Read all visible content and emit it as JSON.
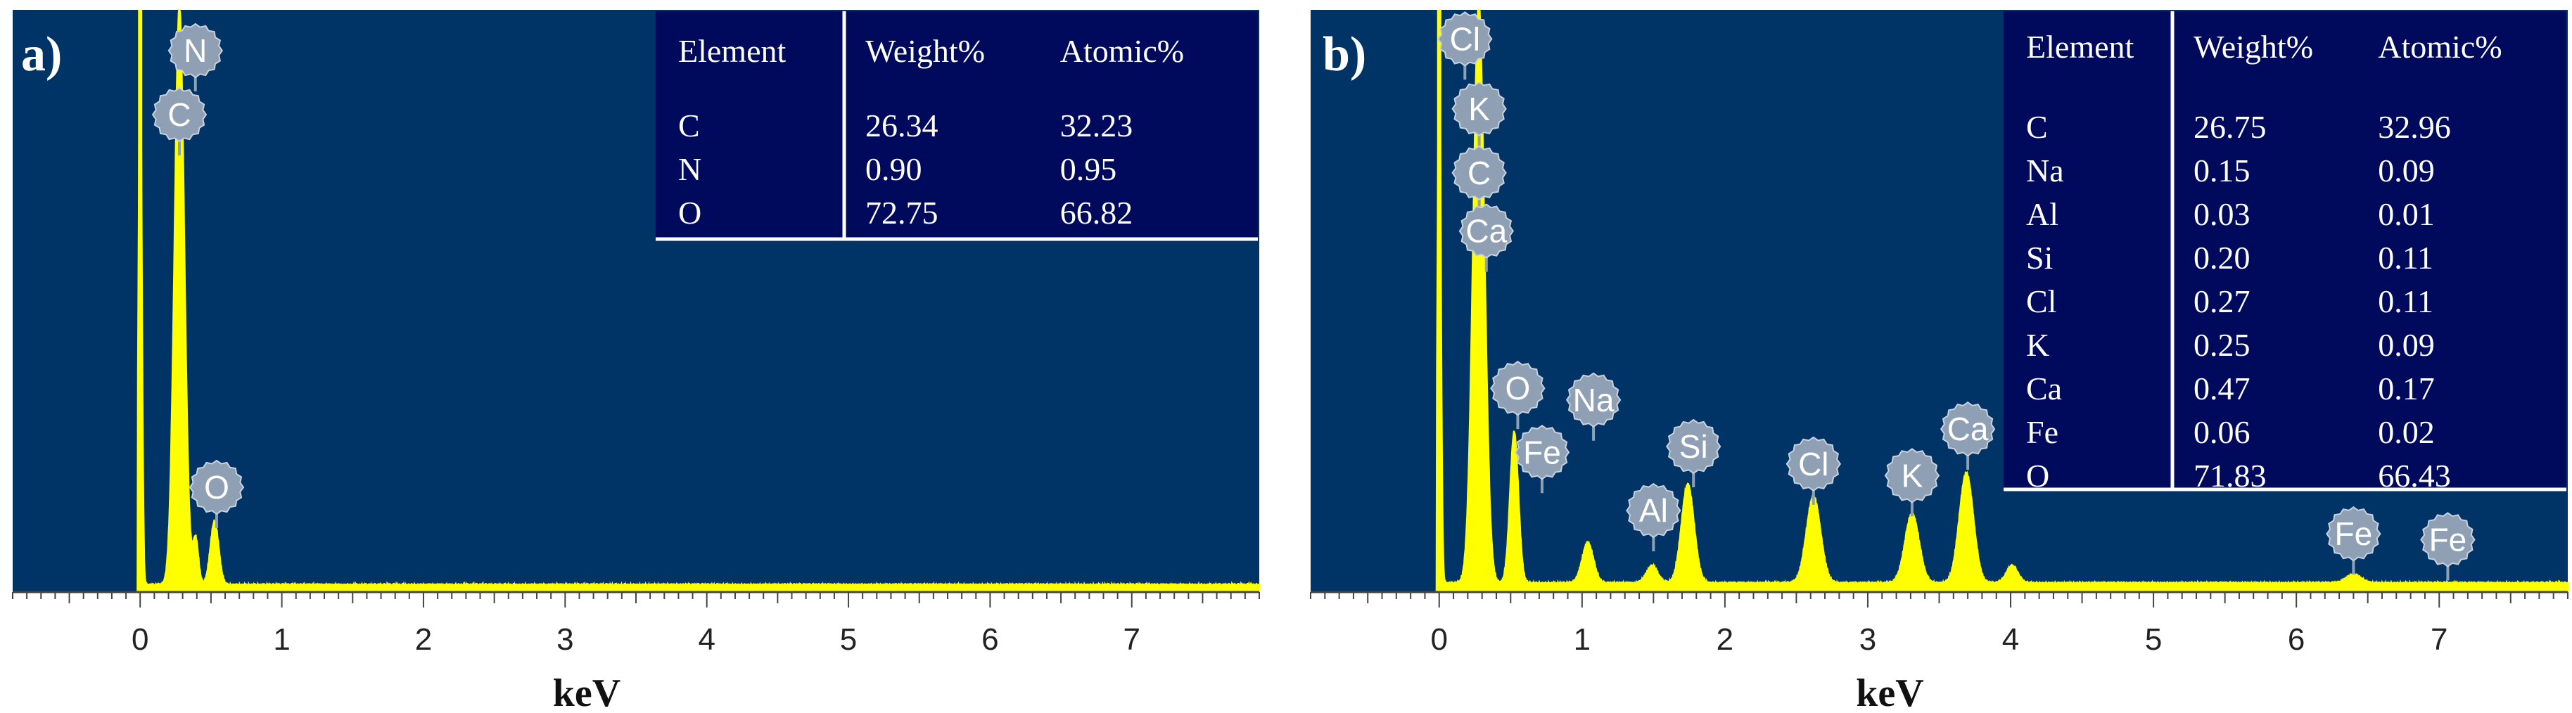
{
  "axis_title": "keV",
  "colors": {
    "background": "#003366",
    "spectrum": "#ffff00",
    "badge": "#8f9fb4",
    "table": "#000a5c",
    "axis": "#444444"
  },
  "chart_data": [
    {
      "type": "line",
      "panel_label": "a)",
      "xlabel": "keV",
      "xlim": [
        -0.9,
        7.9
      ],
      "ylim": [
        0,
        100
      ],
      "x_ticks": [
        0,
        1,
        2,
        3,
        4,
        5,
        6,
        7
      ],
      "grid": false,
      "series": [
        {
          "peaks": [
            {
              "x": 0.0,
              "y": 100,
              "width": 0.012
            },
            {
              "x": 0.277,
              "y": 100,
              "width": 0.035
            },
            {
              "x": 0.392,
              "y": 8,
              "width": 0.02
            },
            {
              "x": 0.525,
              "y": 11,
              "width": 0.03
            }
          ],
          "baseline": 1.2
        }
      ],
      "peak_labels": [
        {
          "text": "N",
          "x": 0.39,
          "y": 93
        },
        {
          "text": "C",
          "x": 0.277,
          "y": 82
        },
        {
          "text": "O",
          "x": 0.54,
          "y": 18
        }
      ],
      "table": {
        "headers": [
          "Element",
          "Weight%",
          "Atomic%"
        ],
        "rows": [
          [
            "C",
            "26.34",
            "32.23"
          ],
          [
            "N",
            "0.90",
            "0.95"
          ],
          [
            "O",
            "72.75",
            "66.82"
          ]
        ]
      }
    },
    {
      "type": "line",
      "panel_label": "b)",
      "xlabel": "keV",
      "xlim": [
        -0.9,
        7.9
      ],
      "ylim": [
        0,
        100
      ],
      "x_ticks": [
        0,
        1,
        2,
        3,
        4,
        5,
        6,
        7
      ],
      "grid": false,
      "series": [
        {
          "peaks": [
            {
              "x": 0.0,
              "y": 100,
              "width": 0.012
            },
            {
              "x": 0.277,
              "y": 100,
              "width": 0.04
            },
            {
              "x": 0.525,
              "y": 26,
              "width": 0.03
            },
            {
              "x": 1.04,
              "y": 7,
              "width": 0.04
            },
            {
              "x": 1.49,
              "y": 3,
              "width": 0.04
            },
            {
              "x": 1.74,
              "y": 17,
              "width": 0.045
            },
            {
              "x": 2.62,
              "y": 15,
              "width": 0.05
            },
            {
              "x": 3.31,
              "y": 12,
              "width": 0.05
            },
            {
              "x": 3.69,
              "y": 19,
              "width": 0.05
            },
            {
              "x": 4.01,
              "y": 3,
              "width": 0.04
            },
            {
              "x": 6.4,
              "y": 1.5,
              "width": 0.05
            }
          ],
          "baseline": 1.5
        }
      ],
      "peak_labels": [
        {
          "text": "Cl",
          "x": 0.18,
          "y": 95
        },
        {
          "text": "K",
          "x": 0.28,
          "y": 83
        },
        {
          "text": "C",
          "x": 0.28,
          "y": 72
        },
        {
          "text": "Ca",
          "x": 0.33,
          "y": 62
        },
        {
          "text": "O",
          "x": 0.55,
          "y": 35
        },
        {
          "text": "Na",
          "x": 1.08,
          "y": 33
        },
        {
          "text": "Fe",
          "x": 0.72,
          "y": 24
        },
        {
          "text": "Si",
          "x": 1.78,
          "y": 25
        },
        {
          "text": "Al",
          "x": 1.5,
          "y": 14
        },
        {
          "text": "Cl",
          "x": 2.62,
          "y": 22
        },
        {
          "text": "K",
          "x": 3.31,
          "y": 20
        },
        {
          "text": "Ca",
          "x": 3.7,
          "y": 28
        },
        {
          "text": "Fe",
          "x": 6.4,
          "y": 10
        },
        {
          "text": "Fe",
          "x": 7.06,
          "y": 9
        }
      ],
      "table": {
        "headers": [
          "Element",
          "Weight%",
          "Atomic%"
        ],
        "rows": [
          [
            "C",
            "26.75",
            "32.96"
          ],
          [
            "Na",
            "0.15",
            "0.09"
          ],
          [
            "Al",
            "0.03",
            "0.01"
          ],
          [
            "Si",
            "0.20",
            "0.11"
          ],
          [
            "Cl",
            "0.27",
            "0.11"
          ],
          [
            "K",
            "0.25",
            "0.09"
          ],
          [
            "Ca",
            "0.47",
            "0.17"
          ],
          [
            "Fe",
            "0.06",
            "0.02"
          ],
          [
            "O",
            "71.83",
            "66.43"
          ]
        ]
      }
    }
  ]
}
